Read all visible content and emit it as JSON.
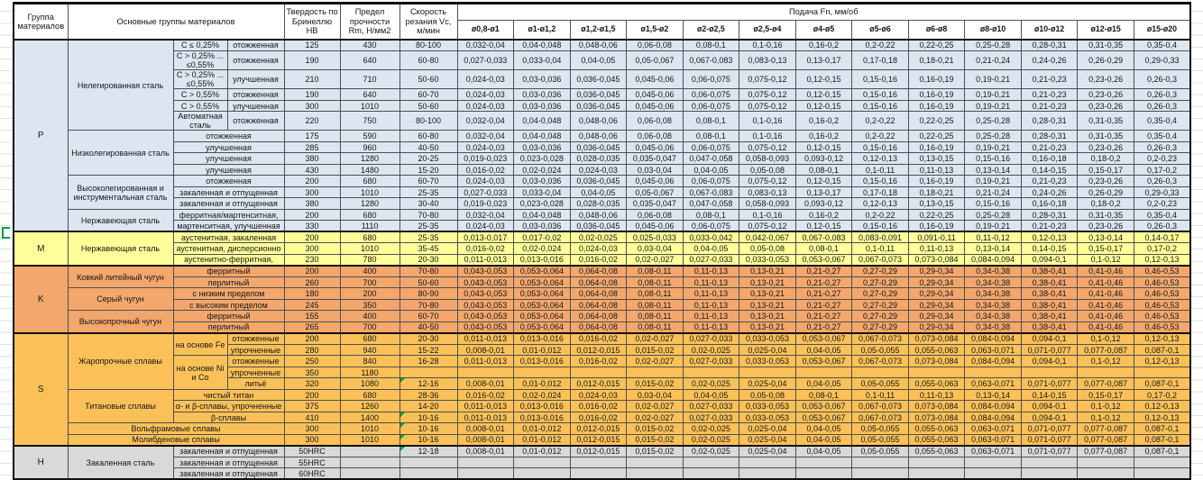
{
  "header": {
    "col_group": "Группа материалов",
    "col_main": "Основные группы материалов",
    "col_hb": "Твердость по Бринеллю HB",
    "col_rm": "Предел прочности Rm, Н/мм2",
    "col_vc": "Скорость резания Vc, м/мин",
    "feed_title": "Подача Fn, мм/об",
    "diameters": [
      "ø0,8-ø1",
      "ø1-ø1,2",
      "ø1,2-ø1,5",
      "ø1,5-ø2",
      "ø2-ø2,5",
      "ø2,5-ø4",
      "ø4-ø5",
      "ø5-ø6",
      "ø6-ø8",
      "ø8-ø10",
      "ø10-ø12",
      "ø12-ø15",
      "ø15-ø20"
    ]
  },
  "flag_color": "#00a33c",
  "marker_color": "#00a33c",
  "feed_sets": {
    "A": [
      "0,032-0,04",
      "0,04-0,048",
      "0,048-0,06",
      "0,06-0,08",
      "0,08-0,1",
      "0,1-0,16",
      "0,16-0,2",
      "0,2-0,22",
      "0,22-0,25",
      "0,25-0,28",
      "0,28-0,31",
      "0,31-0,35",
      "0,35-0,4"
    ],
    "B": [
      "0,027-0,033",
      "0,033-0,04",
      "0,04-0,05",
      "0,05-0,067",
      "0,067-0,083",
      "0,083-0,13",
      "0,13-0,17",
      "0,17-0,18",
      "0,18-0,21",
      "0,21-0,24",
      "0,24-0,26",
      "0,26-0,29",
      "0,29-0,33"
    ],
    "C": [
      "0,024-0,03",
      "0,03-0,036",
      "0,036-0,045",
      "0,045-0,06",
      "0,06-0,075",
      "0,075-0,12",
      "0,12-0,15",
      "0,15-0,16",
      "0,16-0,19",
      "0,19-0,21",
      "0,21-0,23",
      "0,23-0,26",
      "0,26-0,3"
    ],
    "D": [
      "0,019-0,023",
      "0,023-0,028",
      "0,028-0,035",
      "0,035-0,047",
      "0,047-0,058",
      "0,058-0,093",
      "0,093-0,12",
      "0,12-0,13",
      "0,13-0,15",
      "0,15-0,16",
      "0,16-0,18",
      "0,18-0,2",
      "0,2-0,23"
    ],
    "E": [
      "0,016-0,02",
      "0,02-0,024",
      "0,024-0,03",
      "0,03-0,04",
      "0,04-0,05",
      "0,05-0,08",
      "0,08-0,1",
      "0,1-0,11",
      "0,11-0,13",
      "0,13-0,14",
      "0,14-0,15",
      "0,15-0,17",
      "0,17-0,2"
    ],
    "F": [
      "0,013-0,017",
      "0,017-0,02",
      "0,02-0,025",
      "0,025-0,033",
      "0,033-0,042",
      "0,042-0,067",
      "0,067-0,083",
      "0,083-0,091",
      "0,091-0,11",
      "0,11-0,12",
      "0,12-0,13",
      "0,13-0,14",
      "0,14-0,17"
    ],
    "G": [
      "0,011-0,013",
      "0,013-0,016",
      "0,016-0,02",
      "0,02-0,027",
      "0,027-0,033",
      "0,033-0,053",
      "0,053-0,067",
      "0,067-0,073",
      "0,073-0,084",
      "0,084-0,094",
      "0,094-0,1",
      "0,1-0,12",
      "0,12-0,13"
    ],
    "H": [
      "0,008-0,01",
      "0,01-0,012",
      "0,012-0,015",
      "0,015-0,02",
      "0,02-0,025",
      "0,025-0,04",
      "0,04-0,05",
      "0,05-0,055",
      "0,055-0,063",
      "0,063-0,071",
      "0,071-0,077",
      "0,077-0,087",
      "0,087-0,1"
    ],
    "K": [
      "0,043-0,053",
      "0,053-0,064",
      "0,064-0,08",
      "0,08-0,11",
      "0,11-0,13",
      "0,13-0,21",
      "0,21-0,27",
      "0,27-0,29",
      "0,29-0,34",
      "0,34-0,38",
      "0,38-0,41",
      "0,41-0,46",
      "0,46-0,53"
    ],
    "X": [
      "",
      "",
      "",
      "",
      "",
      "",
      "",
      "",
      "",
      "",
      "",
      "",
      ""
    ]
  },
  "groups": [
    {
      "letter": "P",
      "color": "#dce6f1",
      "rows": [
        {
          "family": {
            "text": "Нелегированная сталь",
            "rowspan": 6
          },
          "sub1": "C ≤ 0,25%",
          "sub2": "отожженная",
          "hb": "125",
          "rm": "430",
          "vc": "80-100",
          "feeds": "A"
        },
        {
          "sub1": "C > 0,25% ... ≤0,55%",
          "sub2": "отожженная",
          "tall": true,
          "hb": "190",
          "rm": "640",
          "vc": "60-80",
          "feeds": "B"
        },
        {
          "sub1": "C > 0,25% ... ≤0,55%",
          "sub2": "улучшенная",
          "tall": true,
          "hb": "210",
          "rm": "710",
          "vc": "50-60",
          "feeds": "C"
        },
        {
          "sub1": "C > 0,55%",
          "sub2": "отожженная",
          "hb": "190",
          "rm": "640",
          "vc": "60-70",
          "feeds": "C"
        },
        {
          "sub1": "C > 0,55%",
          "sub2": "улучшенная",
          "hb": "300",
          "rm": "1010",
          "vc": "50-60",
          "feeds": "C"
        },
        {
          "sub1": "Автоматная сталь",
          "sub2": "отожженная",
          "tall": true,
          "hb": "220",
          "rm": "750",
          "vc": "80-100",
          "feeds": "A"
        },
        {
          "family": {
            "text": "Низколегированная сталь",
            "rowspan": 4
          },
          "sub": "отожженная",
          "hb": "175",
          "rm": "590",
          "vc": "60-80",
          "feeds": "A"
        },
        {
          "sub": "улучшенная",
          "hb": "285",
          "rm": "960",
          "vc": "40-50",
          "feeds": "C"
        },
        {
          "sub": "улучшенная",
          "hb": "380",
          "rm": "1280",
          "vc": "20-25",
          "feeds": "D"
        },
        {
          "sub": "улучшенная",
          "hb": "430",
          "rm": "1480",
          "vc": "15-20",
          "feeds": "E"
        },
        {
          "family": {
            "text": "Высоколегированная и инструментальная сталь",
            "rowspan": 3
          },
          "sub": "отожженная",
          "hb": "200",
          "rm": "680",
          "vc": "60-70",
          "feeds": "C"
        },
        {
          "sub": "закаленная и отпущенная",
          "hb": "300",
          "rm": "1010",
          "vc": "25-35",
          "feeds": "B"
        },
        {
          "sub": "закаленная и отпущенная",
          "hb": "380",
          "rm": "1280",
          "vc": "30-40",
          "feeds": "D"
        },
        {
          "family": {
            "text": "Нержавеющая сталь",
            "rowspan": 2
          },
          "sub": "ферритная/мартенситная,",
          "hb": "200",
          "rm": "680",
          "vc": "70-80",
          "feeds": "A"
        },
        {
          "sub": "мартенситная, улучшенная",
          "hb": "330",
          "rm": "1110",
          "vc": "25-35",
          "feeds": "C"
        }
      ]
    },
    {
      "letter": "M",
      "color": "#ffff99",
      "rows": [
        {
          "family": {
            "text": "Нержавеющая сталь",
            "rowspan": 3
          },
          "sub": "аустенитная, закаленная",
          "hb": "200",
          "rm": "680",
          "vc": "25-35",
          "feeds": "F"
        },
        {
          "sub": "аустенитная, дисперсионно",
          "hb": "300",
          "rm": "1010",
          "vc": "35-45",
          "feeds": "E"
        },
        {
          "sub": "аустенитно-ферритная,",
          "hb": "230",
          "rm": "780",
          "vc": "20-30",
          "feeds": "G"
        }
      ]
    },
    {
      "letter": "K",
      "color": "#f3a76c",
      "rows": [
        {
          "family": {
            "text": "Ковкий литейный чугун",
            "rowspan": 2
          },
          "sub": "ферритный",
          "hb": "200",
          "rm": "400",
          "vc": "70-80",
          "feeds": "K"
        },
        {
          "sub": "перлитный",
          "hb": "260",
          "rm": "700",
          "vc": "50-60",
          "feeds": "K"
        },
        {
          "family": {
            "text": "Серый чугун",
            "rowspan": 2
          },
          "sub": "с низким пределом",
          "hb": "180",
          "rm": "200",
          "vc": "80-90",
          "feeds": "K"
        },
        {
          "sub": "с высоким пределом",
          "hb": "245",
          "rm": "350",
          "vc": "70-80",
          "feeds": "K"
        },
        {
          "family": {
            "text": "Высокопрочный чугун",
            "rowspan": 2
          },
          "sub": "ферритный",
          "hb": "155",
          "rm": "400",
          "vc": "60-70",
          "feeds": "K"
        },
        {
          "sub": "перлитный",
          "hb": "265",
          "rm": "700",
          "vc": "40-50",
          "feeds": "K"
        }
      ]
    },
    {
      "letter": "S",
      "color": "#fbc158",
      "rows": [
        {
          "family": {
            "text": "Жаропрочные сплавы",
            "rowspan": 5
          },
          "sub1": {
            "text": "на основе Fe",
            "rowspan": 2
          },
          "sub2": "отожженные",
          "hb": "200",
          "rm": "680",
          "vc": "20-30",
          "feeds": "G"
        },
        {
          "sub2": "упрочненные",
          "hb": "280",
          "rm": "940",
          "vc": "15-22",
          "feeds": "H"
        },
        {
          "sub1": {
            "text": "на основе Ni и Co",
            "rowspan": 3
          },
          "sub2": "отожженные",
          "hb": "250",
          "rm": "840",
          "vc": "16-28",
          "feeds": "G"
        },
        {
          "sub2": "упрочненные",
          "hb": "350",
          "rm": "1180",
          "vc": "",
          "feeds": "X"
        },
        {
          "sub2": "литьё",
          "hb": "320",
          "rm": "1080",
          "vc": "12-16",
          "flag": true,
          "feeds": "H"
        },
        {
          "family": {
            "text": "Титановые сплавы",
            "rowspan": 3
          },
          "sub": "чистый титан",
          "hb": "200",
          "rm": "680",
          "vc": "28-36",
          "feeds": "E"
        },
        {
          "sub": "α- и β-сплавы, упрочненные",
          "hb": "375",
          "rm": "1260",
          "vc": "14-20",
          "feeds": "G"
        },
        {
          "sub": "β-сплавы",
          "hb": "410",
          "rm": "1400",
          "vc": "10-16",
          "flag": true,
          "feeds": "G"
        },
        {
          "family": {
            "text": "Вольфрамовые сплавы",
            "rowspan": 1,
            "colspan": 3
          },
          "hb": "300",
          "rm": "1010",
          "vc": "10-16",
          "flag": true,
          "feeds": "H"
        },
        {
          "family": {
            "text": "Молибденовые сплавы",
            "rowspan": 1,
            "colspan": 3
          },
          "hb": "300",
          "rm": "1010",
          "vc": "10-16",
          "flag": true,
          "feeds": "H"
        }
      ]
    },
    {
      "letter": "H",
      "color": "#d9d9d9",
      "rows": [
        {
          "family": {
            "text": "Закаленная сталь",
            "rowspan": 3
          },
          "sub": "закаленная и отпущенная",
          "hb": "50HRC",
          "rm": "",
          "vc": "12-18",
          "flag": true,
          "feeds": "H"
        },
        {
          "sub": "закаленная и отпущенная",
          "hb": "55HRC",
          "rm": "",
          "vc": "",
          "feeds": "X"
        },
        {
          "sub": "закаленная и отпущенная",
          "hb": "60HRC",
          "rm": "",
          "vc": "",
          "feeds": "X"
        }
      ]
    }
  ]
}
